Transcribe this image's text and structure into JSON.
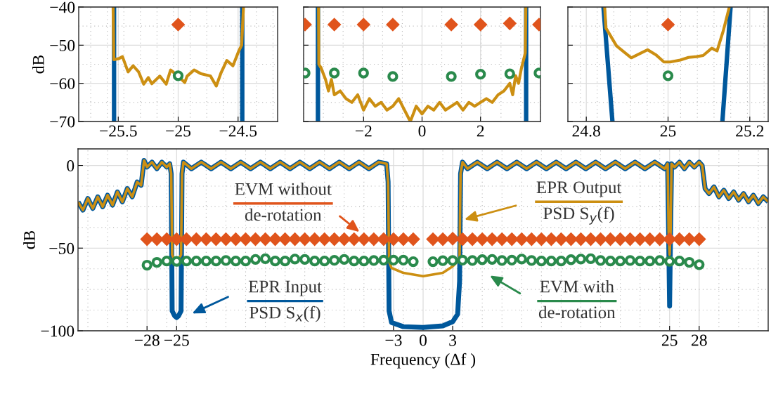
{
  "chart_data": [
    {
      "type": "line",
      "ylabel": "dB",
      "xlim": [
        -25.83,
        -24.17
      ],
      "ylim": [
        -70,
        -40
      ],
      "xticks": [
        -25.5,
        -25,
        -24.5
      ],
      "yticks": [
        -70,
        -60,
        -50,
        -40
      ],
      "grid": true,
      "series": [
        {
          "color": "#00589c",
          "x": [
            -25.535,
            -25.535,
            -25.0,
            -24.465,
            -24.465
          ],
          "values": [
            -40,
            -70,
            null,
            -70,
            -40
          ]
        },
        {
          "color": "#cc8f12",
          "x": [
            -25.543,
            -25.537,
            -25.494,
            -25.465,
            -25.418,
            -25.376,
            -25.33,
            -25.288,
            -25.249,
            -25.22,
            -25.153,
            -25.1,
            -25.063,
            -25.004,
            -24.945,
            -24.925,
            -24.867,
            -24.808,
            -24.73,
            -24.682,
            -24.643,
            -24.594,
            -24.543,
            -24.494,
            -24.47,
            -24.455
          ],
          "values": [
            -40,
            -53.8,
            -53.5,
            -53.0,
            -57.0,
            -55.4,
            -57.0,
            -60.2,
            -58.5,
            -60.1,
            -58.1,
            -60.2,
            -56.5,
            -58.0,
            -59.8,
            -58.1,
            -56.5,
            -57.5,
            -58.1,
            -60.7,
            -57.3,
            -54.0,
            -55.4,
            -51.5,
            -50,
            -40
          ]
        },
        {
          "type": "scatter",
          "marker": "diamond",
          "color": "#e0541c",
          "x": [
            -25
          ],
          "values": [
            -44.6
          ]
        },
        {
          "type": "scatter",
          "marker": "circle",
          "color": "#2a8a4c",
          "x": [
            -25
          ],
          "values": [
            -58.0
          ]
        }
      ]
    },
    {
      "type": "line",
      "xlim": [
        -4.05,
        4.05
      ],
      "ylim": [
        -70,
        -40
      ],
      "xticks": [
        -2,
        0,
        2
      ],
      "yticks": [
        -70,
        -60,
        -50,
        -40
      ],
      "grid": true,
      "tick_labels": "x",
      "series": [
        {
          "color": "#00589c",
          "x": [
            -3.56,
            -3.56,
            0,
            3.56,
            3.56
          ],
          "values": [
            -40,
            -70,
            null,
            -70,
            -40
          ]
        },
        {
          "color": "#cc8f12",
          "x": [
            -3.54,
            -3.53,
            -3.45,
            -3.3,
            -3.2,
            -3.1,
            -3.0,
            -2.8,
            -2.6,
            -2.4,
            -2.2,
            -2.0,
            -1.8,
            -1.6,
            -1.4,
            -1.2,
            -1.0,
            -0.8,
            -0.6,
            -0.4,
            -0.2,
            0.0,
            0.2,
            0.4,
            0.6,
            0.8,
            1.0,
            1.2,
            1.4,
            1.6,
            1.8,
            2.0,
            2.2,
            2.4,
            2.6,
            2.8,
            3.0,
            3.1,
            3.2,
            3.3,
            3.4,
            3.5,
            3.53,
            3.55
          ],
          "values": [
            -40,
            -55,
            -56,
            -59,
            -62,
            -59,
            -63,
            -62,
            -64,
            -65,
            -63,
            -67,
            -64,
            -66,
            -65,
            -67,
            -66,
            -64,
            -67,
            -70,
            -66,
            -68,
            -66,
            -67,
            -65,
            -67,
            -66,
            -65,
            -67,
            -65,
            -66,
            -65,
            -64,
            -65,
            -63,
            -62,
            -60,
            -63,
            -58,
            -60,
            -56,
            -53,
            -52,
            -40
          ]
        },
        {
          "type": "scatter",
          "marker": "diamond",
          "color": "#e0541c",
          "x": [
            -4,
            -3,
            -2,
            -1,
            1,
            2,
            3,
            4
          ],
          "values": [
            -44.6,
            -44.6,
            -44.6,
            -44.6,
            -44.6,
            -44.6,
            -44.3,
            -44.6
          ]
        },
        {
          "type": "scatter",
          "marker": "circle",
          "color": "#2a8a4c",
          "x": [
            -4,
            -3,
            -2,
            -1,
            1,
            2,
            3,
            4
          ],
          "values": [
            -57.3,
            -57.3,
            -57.3,
            -58.2,
            -58.2,
            -57.6,
            -57.5,
            -57.3
          ]
        }
      ]
    },
    {
      "type": "line",
      "xlim": [
        24.755,
        25.245
      ],
      "ylim": [
        -70,
        -40
      ],
      "xticks": [
        24.8,
        25,
        25.2
      ],
      "yticks": [
        -70,
        -60,
        -50,
        -40
      ],
      "grid": true,
      "tick_labels": "x",
      "series": [
        {
          "color": "#00589c",
          "x": [
            24.842,
            24.864,
            25.0,
            25.133,
            25.153
          ],
          "values": [
            -40,
            -70,
            null,
            -70,
            -40
          ]
        },
        {
          "color": "#cc8f12",
          "x": [
            24.845,
            24.848,
            24.874,
            24.91,
            24.95,
            24.97,
            24.99,
            25.005,
            25.03,
            25.05,
            25.07,
            25.086,
            25.107,
            25.12,
            25.135,
            25.15
          ],
          "values": [
            -40,
            -45.5,
            -50.2,
            -53.3,
            -51.2,
            -52.5,
            -54.4,
            -54.4,
            -53.9,
            -53.2,
            -53.0,
            -52.7,
            -50.8,
            -51.5,
            -46.3,
            -40
          ]
        },
        {
          "type": "scatter",
          "marker": "diamond",
          "color": "#e0541c",
          "x": [
            25
          ],
          "values": [
            -44.6
          ]
        },
        {
          "type": "scatter",
          "marker": "circle",
          "color": "#2a8a4c",
          "x": [
            25
          ],
          "values": [
            -58.0
          ]
        }
      ]
    },
    {
      "type": "line",
      "xlabel": "Frequency (Δf )",
      "ylabel": "dB",
      "xlim": [
        -35,
        35
      ],
      "ylim": [
        -100,
        10
      ],
      "xticks": [
        -28,
        -25,
        -3,
        0,
        3,
        25,
        28
      ],
      "yticks": [
        -100,
        -50,
        0
      ],
      "grid": true,
      "legend": "center",
      "series": [
        {
          "name": "EPR Input\nPSD S$_{x}$(f)",
          "color": "#00589c",
          "x": [
            -35,
            -34.5,
            -34,
            -33.5,
            -33,
            -32.5,
            -32,
            -31.5,
            -31,
            -30.5,
            -30,
            -29.5,
            -29,
            -28.6,
            -28.3,
            -28,
            -27.5,
            -27,
            -26.5,
            -26,
            -25.7,
            -25.55,
            -25.45,
            -25.2,
            -25,
            -24.8,
            -24.55,
            -24.45,
            -24.3,
            -23.5,
            -22.5,
            -21.5,
            -20.5,
            -19.5,
            -18.5,
            -17.5,
            -16.5,
            -15.5,
            -14.5,
            -13.5,
            -12.5,
            -11.5,
            -10.5,
            -9.5,
            -8.5,
            -7.5,
            -6.5,
            -5.5,
            -4.5,
            -3.7,
            -3.55,
            -3.45,
            -3.2,
            -2,
            0,
            2,
            3,
            3.5,
            3.7,
            3.8,
            4,
            4.5,
            5.5,
            6.5,
            7.5,
            8.5,
            9.5,
            10.5,
            11.5,
            12.5,
            13.5,
            14.5,
            15.5,
            16.5,
            17.5,
            18.5,
            19.5,
            20.5,
            21.5,
            22.5,
            23.5,
            24.5,
            24.8,
            24.9,
            25,
            25.1,
            25.2,
            25.5,
            26,
            26.5,
            27,
            27.5,
            28,
            28.3,
            28.6,
            29,
            29.5,
            30,
            30.5,
            31,
            31.5,
            32,
            32.5,
            33,
            33.5,
            34,
            34.5,
            35
          ],
          "values": [
            -22,
            -27,
            -20,
            -26,
            -19,
            -25,
            -18,
            -24,
            -16,
            -22,
            -14,
            -19,
            -10,
            -12,
            3,
            -1,
            2,
            -2,
            2,
            -1,
            1,
            -5,
            -88,
            -91,
            -92,
            -91,
            -88,
            -5,
            2,
            -2,
            2,
            -2,
            2,
            -2,
            2,
            -2,
            2,
            -2,
            2,
            -2,
            2,
            -2,
            2,
            -2,
            2,
            -2,
            2,
            -2,
            2,
            1,
            -10,
            -88,
            -95,
            -97.5,
            -98,
            -97,
            -94.5,
            -90,
            -70,
            -5,
            2,
            -2,
            2,
            -2,
            2,
            -2,
            2,
            -2,
            2,
            -2,
            2,
            -2,
            2,
            -2,
            2,
            -2,
            2,
            -2,
            2,
            -2,
            2,
            -2,
            1,
            -40,
            -85,
            -40,
            1,
            -1,
            2,
            -2,
            2,
            -1,
            2,
            0,
            -14,
            -17,
            -13,
            -19,
            -15,
            -20,
            -16,
            -21,
            -17,
            -22,
            -18,
            -23,
            -19,
            -22
          ]
        },
        {
          "name": "EPR Output\nPSD S$_{y}$(f)",
          "color": "#cc8f12",
          "x": [
            -35,
            -34.5,
            -34,
            -33.5,
            -33,
            -32.5,
            -32,
            -31.5,
            -31,
            -30.5,
            -30,
            -29.5,
            -29,
            -28.6,
            -28.3,
            -28,
            -27.5,
            -27,
            -26.5,
            -26,
            -25.7,
            -25.55,
            -25.45,
            -25.2,
            -25,
            -24.8,
            -24.55,
            -24.45,
            -24.3,
            -23.5,
            -22.5,
            -21.5,
            -20.5,
            -19.5,
            -18.5,
            -17.5,
            -16.5,
            -15.5,
            -14.5,
            -13.5,
            -12.5,
            -11.5,
            -10.5,
            -9.5,
            -8.5,
            -7.5,
            -6.5,
            -5.5,
            -4.5,
            -3.7,
            -3.55,
            -3.45,
            -3.2,
            -2,
            0,
            2,
            3,
            3.5,
            3.7,
            3.8,
            4,
            4.5,
            5.5,
            6.5,
            7.5,
            8.5,
            9.5,
            10.5,
            11.5,
            12.5,
            13.5,
            14.5,
            15.5,
            16.5,
            17.5,
            18.5,
            19.5,
            20.5,
            21.5,
            22.5,
            23.5,
            24.5,
            24.8,
            24.9,
            25,
            25.1,
            25.2,
            25.5,
            26,
            26.5,
            27,
            27.5,
            28,
            28.3,
            28.6,
            29,
            29.5,
            30,
            30.5,
            31,
            31.5,
            32,
            32.5,
            33,
            33.5,
            34,
            34.5,
            35
          ],
          "values": [
            -22,
            -27,
            -20,
            -26,
            -19,
            -25,
            -18,
            -24,
            -16,
            -22,
            -14,
            -19,
            -10,
            -12,
            3,
            -1,
            2,
            -2,
            2,
            -1,
            1,
            -5,
            -54,
            -58,
            -58,
            -57,
            -54,
            -5,
            2,
            -2,
            2,
            -2,
            2,
            -2,
            2,
            -2,
            2,
            -2,
            2,
            -2,
            2,
            -2,
            2,
            -2,
            2,
            -2,
            2,
            -2,
            2,
            1,
            -10,
            -58,
            -62,
            -65,
            -67,
            -65,
            -61,
            -58,
            -55,
            -5,
            2,
            -2,
            2,
            -2,
            2,
            -2,
            2,
            -2,
            2,
            -2,
            2,
            -2,
            2,
            -2,
            2,
            -2,
            2,
            -2,
            2,
            -2,
            2,
            -2,
            1,
            -40,
            -54,
            -40,
            1,
            -1,
            2,
            -2,
            2,
            -1,
            2,
            0,
            -14,
            -17,
            -13,
            -19,
            -15,
            -20,
            -16,
            -21,
            -17,
            -22,
            -18,
            -23,
            -19,
            -22
          ]
        },
        {
          "name": "EVM without\nde-rotation",
          "type": "scatter",
          "marker": "diamond",
          "color": "#e0541c",
          "x": [
            -28,
            -27,
            -26,
            -25,
            -24,
            -23,
            -22,
            -21,
            -20,
            -19,
            -18,
            -17,
            -16,
            -15,
            -14,
            -13,
            -12,
            -11,
            -10,
            -9,
            -8,
            -7,
            -6,
            -5,
            -4,
            -3,
            -2,
            -1,
            1,
            2,
            3,
            4,
            5,
            6,
            7,
            8,
            9,
            10,
            11,
            12,
            13,
            14,
            15,
            16,
            17,
            18,
            19,
            20,
            21,
            22,
            23,
            24,
            25,
            26,
            27,
            28
          ],
          "values": [
            -44.6,
            -44.6,
            -44.6,
            -44.6,
            -44.6,
            -44.6,
            -44.6,
            -44.6,
            -44.6,
            -44.6,
            -44.6,
            -44.6,
            -44.6,
            -44.6,
            -44.6,
            -44.6,
            -44.6,
            -44.6,
            -44.6,
            -44.6,
            -44.6,
            -44.6,
            -44.6,
            -44.6,
            -44.6,
            -44.6,
            -44.6,
            -44.6,
            -44.6,
            -44.6,
            -44.3,
            -44.6,
            -44.6,
            -44.6,
            -44.6,
            -44.6,
            -44.6,
            -44.6,
            -44.6,
            -44.6,
            -44.6,
            -44.6,
            -44.6,
            -44.6,
            -44.6,
            -44.6,
            -44.6,
            -44.6,
            -44.6,
            -44.6,
            -44.6,
            -44.6,
            -44.6,
            -44.6,
            -44.6,
            -44.6
          ]
        },
        {
          "name": "EVM with\nde-rotation",
          "type": "scatter",
          "marker": "circle",
          "color": "#2a8a4c",
          "x": [
            -28,
            -27,
            -26,
            -25,
            -24,
            -23,
            -22,
            -21,
            -20,
            -19,
            -18,
            -17,
            -16,
            -15,
            -14,
            -13,
            -12,
            -11,
            -10,
            -9,
            -8,
            -7,
            -6,
            -5,
            -4,
            -3,
            -2,
            -1,
            1,
            2,
            3,
            4,
            5,
            6,
            7,
            8,
            9,
            10,
            11,
            12,
            13,
            14,
            15,
            16,
            17,
            18,
            19,
            20,
            21,
            22,
            23,
            24,
            25,
            26,
            27,
            28
          ],
          "values": [
            -60.3,
            -58.6,
            -57.8,
            -58.0,
            -57.8,
            -57.8,
            -57.8,
            -57.8,
            -57.5,
            -57.8,
            -57.8,
            -56.8,
            -56.4,
            -57.8,
            -57.8,
            -56.6,
            -56.8,
            -57.8,
            -57.8,
            -57.4,
            -56.8,
            -57.8,
            -57.8,
            -57.5,
            -57.3,
            -57.3,
            -57.3,
            -58.2,
            -58.2,
            -57.6,
            -57.5,
            -57.3,
            -57.5,
            -57.0,
            -56.8,
            -57.5,
            -57.3,
            -56.6,
            -57.5,
            -57.8,
            -57.8,
            -57.8,
            -57.0,
            -56.6,
            -56.4,
            -57.5,
            -57.8,
            -57.8,
            -57.5,
            -57.8,
            -57.8,
            -57.5,
            -58.0,
            -57.8,
            -58.6,
            -60.0
          ]
        }
      ]
    }
  ]
}
